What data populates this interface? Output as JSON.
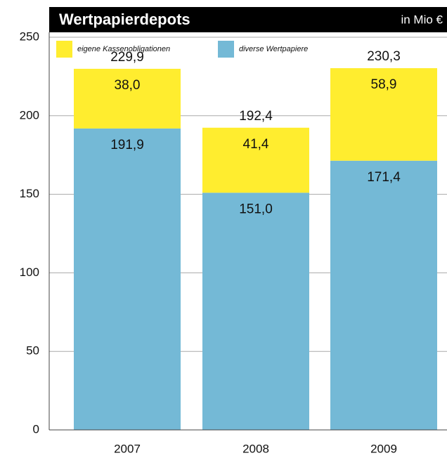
{
  "chart_data": {
    "type": "stacked_bar",
    "title": "Wertpapierdepots",
    "subtitle": "in Mio €",
    "categories": [
      "2007",
      "2008",
      "2009"
    ],
    "series": [
      {
        "name": "eigene Kassenobligationen",
        "color": "#ffed2f",
        "values": [
          38.0,
          41.4,
          58.9
        ],
        "value_labels": [
          "38,0",
          "41,4",
          "58,9"
        ]
      },
      {
        "name": "diverse Wertpapiere",
        "color": "#74b9d6",
        "values": [
          191.9,
          151.0,
          171.4
        ],
        "value_labels": [
          "191,9",
          "151,0",
          "171,4"
        ]
      }
    ],
    "totals": [
      229.9,
      192.4,
      230.3
    ],
    "total_labels": [
      "229,9",
      "192,4",
      "230,3"
    ],
    "ylim": [
      0,
      250
    ],
    "yticks": [
      0,
      50,
      100,
      150,
      200,
      250
    ],
    "grid": true
  }
}
